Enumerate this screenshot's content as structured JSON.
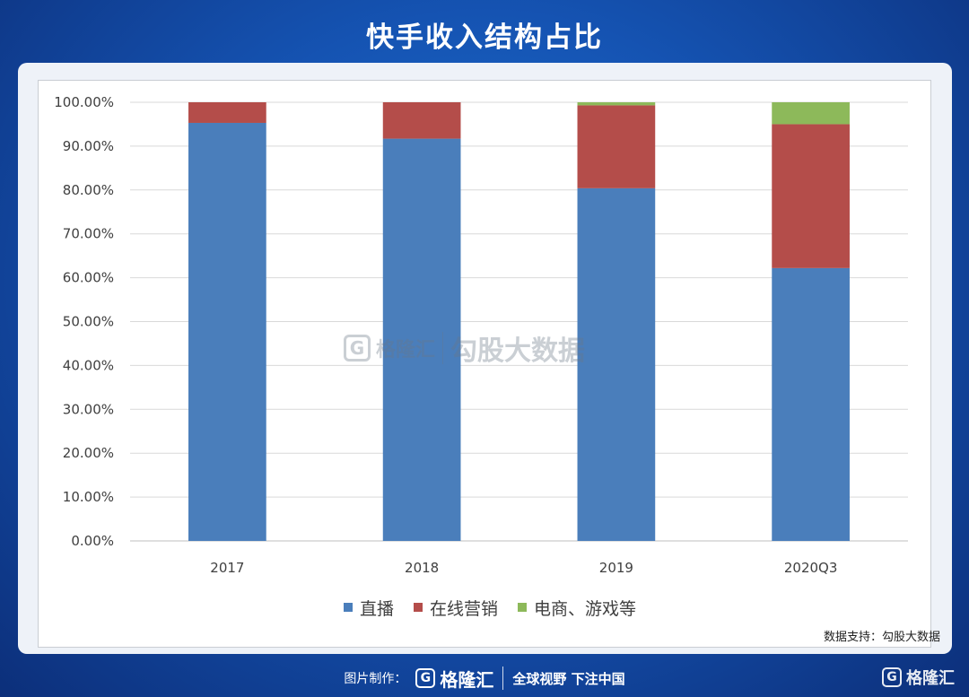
{
  "title": "快手收入结构占比",
  "watermark": {
    "logo_letter": "G",
    "brand": "格隆汇",
    "text": "勾股大数据"
  },
  "chart_data": {
    "type": "bar",
    "stacked": true,
    "categories": [
      "2017",
      "2018",
      "2019",
      "2020Q3"
    ],
    "series": [
      {
        "name": "直播",
        "color": "#4a7ebb",
        "values": [
          95.3,
          91.7,
          80.4,
          62.2
        ]
      },
      {
        "name": "在线营销",
        "color": "#b44d4a",
        "values": [
          4.7,
          8.3,
          18.9,
          32.8
        ]
      },
      {
        "name": "电商、游戏等",
        "color": "#8db95a",
        "values": [
          0,
          0,
          0.7,
          5.0
        ]
      }
    ],
    "ylim": [
      0,
      100
    ],
    "yticks": [
      "0.00%",
      "10.00%",
      "20.00%",
      "30.00%",
      "40.00%",
      "50.00%",
      "60.00%",
      "70.00%",
      "80.00%",
      "90.00%",
      "100.00%"
    ],
    "grid": true,
    "legend": "bottom"
  },
  "source": "数据支持：勾股大数据",
  "footer": {
    "label": "图片制作：",
    "logo_letter": "G",
    "brand": "格隆汇",
    "slogan": "全球视野 下注中国"
  },
  "corner": {
    "logo_letter": "G",
    "brand": "格隆汇"
  }
}
